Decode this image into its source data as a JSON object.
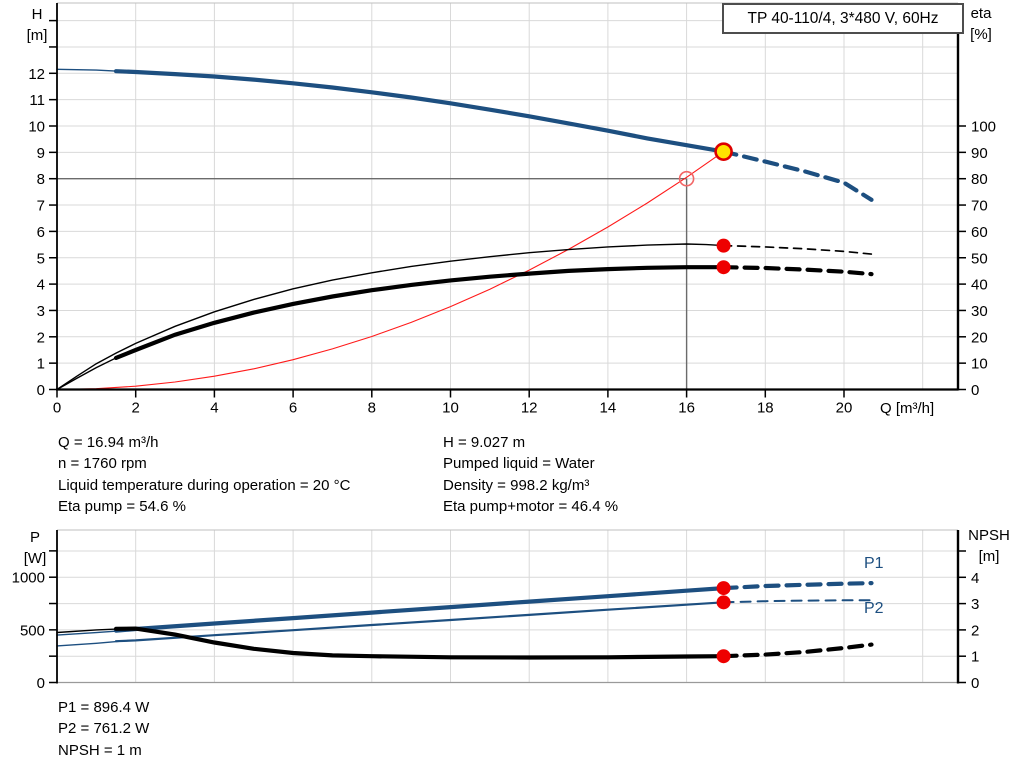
{
  "title_box": {
    "label": "TP 40-110/4, 3*480 V, 60Hz"
  },
  "axis_units": {
    "top_left_line1": "H",
    "top_left_line2": "[m]",
    "top_right_line1": "eta",
    "top_right_line2": "[%]",
    "x_label": "Q [m³/h]",
    "bottom_left_line1": "P",
    "bottom_left_line2": "[W]",
    "bottom_right_line1": "NPSH",
    "bottom_right_line2": "[m]"
  },
  "curve_labels": {
    "p1": "P1",
    "p2": "P2"
  },
  "operating_text": {
    "left": [
      "Q = 16.94 m³/h",
      "n = 1760 rpm",
      "Liquid temperature during operation = 20 °C",
      "Eta pump = 54.6 %"
    ],
    "right": [
      "H = 9.027 m",
      "Pumped liquid = Water",
      "Density = 998.2 kg/m³",
      "Eta pump+motor = 46.4 %"
    ]
  },
  "power_text": [
    "P1 = 896.4 W",
    "P2 = 761.2 W",
    "NPSH = 1 m"
  ],
  "colors": {
    "blue": "#1d4f80",
    "black": "#000000",
    "red": "#ff1a1a",
    "marker_red": "#ee0000",
    "marker_yellow": "#ffe400",
    "open_ring": "#f26666",
    "duty_gray": "#6b6b6b",
    "grid": "#d9d9d9",
    "border_gray": "#bfbfbf"
  },
  "chart_data": [
    {
      "type": "line",
      "id": "qh-eta-chart",
      "title": "TP 40-110/4, 3*480 V, 60Hz",
      "x_axis": {
        "label": "Q [m³/h]",
        "min": 0,
        "max": 22.9,
        "ticks": [
          0,
          2,
          4,
          6,
          8,
          10,
          12,
          14,
          16,
          18,
          20
        ],
        "grid": [
          2,
          4,
          6,
          8,
          10,
          12,
          14,
          16,
          18,
          20,
          22
        ]
      },
      "y_left": {
        "label": "H [m]",
        "min": 0,
        "max": 14.7,
        "ticks_labeled": [
          0,
          1,
          2,
          3,
          4,
          5,
          6,
          7,
          8,
          9,
          10,
          11,
          12
        ],
        "ticks_unlabeled": [
          13,
          14
        ],
        "grid": [
          1,
          2,
          3,
          4,
          5,
          6,
          7,
          8,
          9,
          10,
          11,
          12,
          13,
          14
        ]
      },
      "y_right": {
        "label": "eta [%]",
        "min": 0,
        "max": 100,
        "ticks_labeled": [
          0,
          10,
          20,
          30,
          40,
          50,
          60,
          70,
          80,
          90,
          100
        ],
        "ticks_unlabeled": [],
        "grid": []
      },
      "duty_point": {
        "q": 16,
        "h": 8
      },
      "operating_point": {
        "q": 16.94,
        "h": 9.027
      },
      "series": [
        {
          "name": "system-curve",
          "axis": "left",
          "color": "red",
          "segments": [
            {
              "style": "hairline",
              "points": [
                [
                  0,
                  0
                ],
                [
                  1,
                  0.031
                ],
                [
                  2,
                  0.126
                ],
                [
                  3,
                  0.283
                ],
                [
                  4,
                  0.503
                ],
                [
                  5,
                  0.786
                ],
                [
                  6,
                  1.132
                ],
                [
                  7,
                  1.541
                ],
                [
                  8,
                  2.013
                ],
                [
                  9,
                  2.548
                ],
                [
                  10,
                  3.146
                ],
                [
                  11,
                  3.807
                ],
                [
                  12,
                  4.53
                ],
                [
                  13,
                  5.317
                ],
                [
                  14,
                  6.166
                ],
                [
                  15,
                  7.078
                ],
                [
                  16,
                  8.053
                ],
                [
                  16.94,
                  9.027
                ]
              ]
            }
          ]
        },
        {
          "name": "eta-pump",
          "axis": "right",
          "color": "black",
          "segments": [
            {
              "style": "thin",
              "points": [
                [
                  0,
                  0
                ],
                [
                  0.5,
                  5
                ],
                [
                  1,
                  9.8
                ],
                [
                  1.5,
                  13.8
                ],
                [
                  2,
                  17.5
                ],
                [
                  3,
                  24
                ],
                [
                  4,
                  29.5
                ],
                [
                  5,
                  34.2
                ],
                [
                  6,
                  38.2
                ],
                [
                  7,
                  41.5
                ],
                [
                  8,
                  44.3
                ],
                [
                  9,
                  46.7
                ],
                [
                  10,
                  48.7
                ],
                [
                  11,
                  50.4
                ],
                [
                  12,
                  51.9
                ],
                [
                  13,
                  53.1
                ],
                [
                  14,
                  54.1
                ],
                [
                  15,
                  54.8
                ],
                [
                  16,
                  55.2
                ],
                [
                  16.5,
                  55.0
                ],
                [
                  16.94,
                  54.6
                ]
              ]
            },
            {
              "style": "thin-dashed",
              "points": [
                [
                  16.94,
                  54.6
                ],
                [
                  18,
                  54.1
                ],
                [
                  19,
                  53.4
                ],
                [
                  20,
                  52.4
                ],
                [
                  20.7,
                  51.4
                ]
              ]
            }
          ]
        },
        {
          "name": "eta-pump-motor",
          "axis": "right",
          "color": "black",
          "segments": [
            {
              "style": "thin",
              "points": [
                [
                  0,
                  0
                ],
                [
                  0.5,
                  4.2
                ],
                [
                  1,
                  8.3
                ],
                [
                  1.8,
                  14.2
                ]
              ]
            },
            {
              "style": "thick",
              "points": [
                [
                  1.5,
                  12
                ],
                [
                  2,
                  15
                ],
                [
                  3,
                  20.8
                ],
                [
                  4,
                  25.3
                ],
                [
                  5,
                  29.2
                ],
                [
                  6,
                  32.5
                ],
                [
                  7,
                  35.3
                ],
                [
                  8,
                  37.7
                ],
                [
                  9,
                  39.7
                ],
                [
                  10,
                  41.4
                ],
                [
                  11,
                  42.8
                ],
                [
                  12,
                  44
                ],
                [
                  13,
                  45
                ],
                [
                  14,
                  45.7
                ],
                [
                  15,
                  46.2
                ],
                [
                  16,
                  46.4
                ],
                [
                  16.94,
                  46.4
                ]
              ]
            },
            {
              "style": "thick-dashed",
              "points": [
                [
                  16.94,
                  46.4
                ],
                [
                  18,
                  46.1
                ],
                [
                  19,
                  45.5
                ],
                [
                  20,
                  44.7
                ],
                [
                  20.7,
                  43.8
                ]
              ]
            }
          ]
        },
        {
          "name": "head-curve",
          "axis": "left",
          "color": "blue",
          "segments": [
            {
              "style": "thin",
              "points": [
                [
                  0,
                  12.15
                ],
                [
                  1,
                  12.12
                ],
                [
                  1.8,
                  12.06
                ]
              ]
            },
            {
              "style": "thick",
              "points": [
                [
                  1.5,
                  12.08
                ],
                [
                  2,
                  12.05
                ],
                [
                  3,
                  11.97
                ],
                [
                  4,
                  11.88
                ],
                [
                  5,
                  11.76
                ],
                [
                  6,
                  11.62
                ],
                [
                  7,
                  11.46
                ],
                [
                  8,
                  11.28
                ],
                [
                  9,
                  11.08
                ],
                [
                  10,
                  10.86
                ],
                [
                  11,
                  10.62
                ],
                [
                  12,
                  10.37
                ],
                [
                  13,
                  10.1
                ],
                [
                  14,
                  9.82
                ],
                [
                  15,
                  9.53
                ],
                [
                  16,
                  9.27
                ],
                [
                  16.94,
                  9.027
                ]
              ]
            },
            {
              "style": "thick-dashed",
              "points": [
                [
                  16.94,
                  9.027
                ],
                [
                  18,
                  8.65
                ],
                [
                  19,
                  8.28
                ],
                [
                  20,
                  7.85
                ],
                [
                  20.7,
                  7.2
                ]
              ]
            }
          ]
        }
      ],
      "markers": [
        {
          "q": 16,
          "v": 8,
          "axis": "left",
          "type": "open"
        },
        {
          "q": 16.94,
          "v": 54.6,
          "axis": "right",
          "type": "dot"
        },
        {
          "q": 16.94,
          "v": 46.4,
          "axis": "right",
          "type": "dot"
        },
        {
          "q": 16.94,
          "v": 9.027,
          "axis": "left",
          "type": "operating"
        }
      ]
    },
    {
      "type": "line",
      "id": "power-npsh-chart",
      "x_axis": {
        "label": "",
        "min": 0,
        "max": 22.9,
        "ticks": [],
        "grid": [
          2,
          4,
          6,
          8,
          10,
          12,
          14,
          16,
          18,
          20,
          22
        ]
      },
      "y_left": {
        "label": "P [W]",
        "min": 0,
        "max": 1450,
        "ticks_labeled": [
          0,
          500,
          1000
        ],
        "ticks_unlabeled": [
          250,
          750,
          1250
        ],
        "grid": []
      },
      "y_right": {
        "label": "NPSH [m]",
        "min": 0,
        "max": 5.8,
        "ticks_labeled": [
          0,
          1,
          2,
          3,
          4
        ],
        "ticks_unlabeled": [
          5
        ],
        "grid": [
          1,
          2,
          3,
          4,
          5
        ]
      },
      "series": [
        {
          "name": "p2-curve",
          "axis": "left",
          "color": "blue",
          "segments": [
            {
              "style": "thin",
              "points": [
                [
                  0,
                  348
                ],
                [
                  1,
                  372
                ],
                [
                  1.8,
                  398
                ]
              ]
            },
            {
              "style": "med",
              "points": [
                [
                  1.5,
                  392
                ],
                [
                  2,
                  400
                ],
                [
                  4,
                  449
                ],
                [
                  6,
                  497
                ],
                [
                  8,
                  546
                ],
                [
                  10,
                  594
                ],
                [
                  12,
                  642
                ],
                [
                  14,
                  691
                ],
                [
                  16,
                  739
                ],
                [
                  16.94,
                  761.2
                ]
              ]
            },
            {
              "style": "med-dashed",
              "points": [
                [
                  16.94,
                  761.2
                ],
                [
                  18,
                  772
                ],
                [
                  19,
                  778
                ],
                [
                  20,
                  781
                ],
                [
                  20.7,
                  782
                ]
              ]
            }
          ]
        },
        {
          "name": "p1-curve",
          "axis": "left",
          "color": "blue",
          "segments": [
            {
              "style": "thin",
              "points": [
                [
                  0,
                  450
                ],
                [
                  1,
                  474
                ],
                [
                  1.8,
                  496
                ]
              ]
            },
            {
              "style": "thick",
              "points": [
                [
                  1.5,
                  492
                ],
                [
                  2,
                  508
                ],
                [
                  4,
                  560
                ],
                [
                  6,
                  612
                ],
                [
                  8,
                  664
                ],
                [
                  10,
                  716
                ],
                [
                  12,
                  768
                ],
                [
                  14,
                  820
                ],
                [
                  16,
                  872
                ],
                [
                  16.94,
                  896.4
                ]
              ]
            },
            {
              "style": "thick-dashed",
              "points": [
                [
                  16.94,
                  896.4
                ],
                [
                  18,
                  916
                ],
                [
                  19,
                  928
                ],
                [
                  20,
                  938
                ],
                [
                  20.7,
                  944
                ]
              ]
            }
          ]
        },
        {
          "name": "npsh-curve",
          "axis": "right",
          "color": "black",
          "segments": [
            {
              "style": "thin",
              "points": [
                [
                  0,
                  1.9
                ],
                [
                  1,
                  2.0
                ],
                [
                  1.8,
                  2.05
                ]
              ]
            },
            {
              "style": "thick",
              "points": [
                [
                  1.5,
                  2.04
                ],
                [
                  2,
                  2.05
                ],
                [
                  3,
                  1.82
                ],
                [
                  4,
                  1.52
                ],
                [
                  5,
                  1.28
                ],
                [
                  6,
                  1.12
                ],
                [
                  7,
                  1.03
                ],
                [
                  8,
                  1.0
                ],
                [
                  10,
                  0.96
                ],
                [
                  12,
                  0.95
                ],
                [
                  14,
                  0.96
                ],
                [
                  16,
                  0.99
                ],
                [
                  16.94,
                  1.0
                ]
              ]
            },
            {
              "style": "thick-dashed",
              "points": [
                [
                  16.94,
                  1.0
                ],
                [
                  18,
                  1.06
                ],
                [
                  19,
                  1.16
                ],
                [
                  20,
                  1.31
                ],
                [
                  20.7,
                  1.44
                ]
              ]
            }
          ]
        }
      ],
      "markers": [
        {
          "q": 16.94,
          "v": 896.4,
          "axis": "left",
          "type": "dot"
        },
        {
          "q": 16.94,
          "v": 761.2,
          "axis": "left",
          "type": "dot"
        },
        {
          "q": 16.94,
          "v": 1.0,
          "axis": "right",
          "type": "dot"
        }
      ]
    }
  ]
}
